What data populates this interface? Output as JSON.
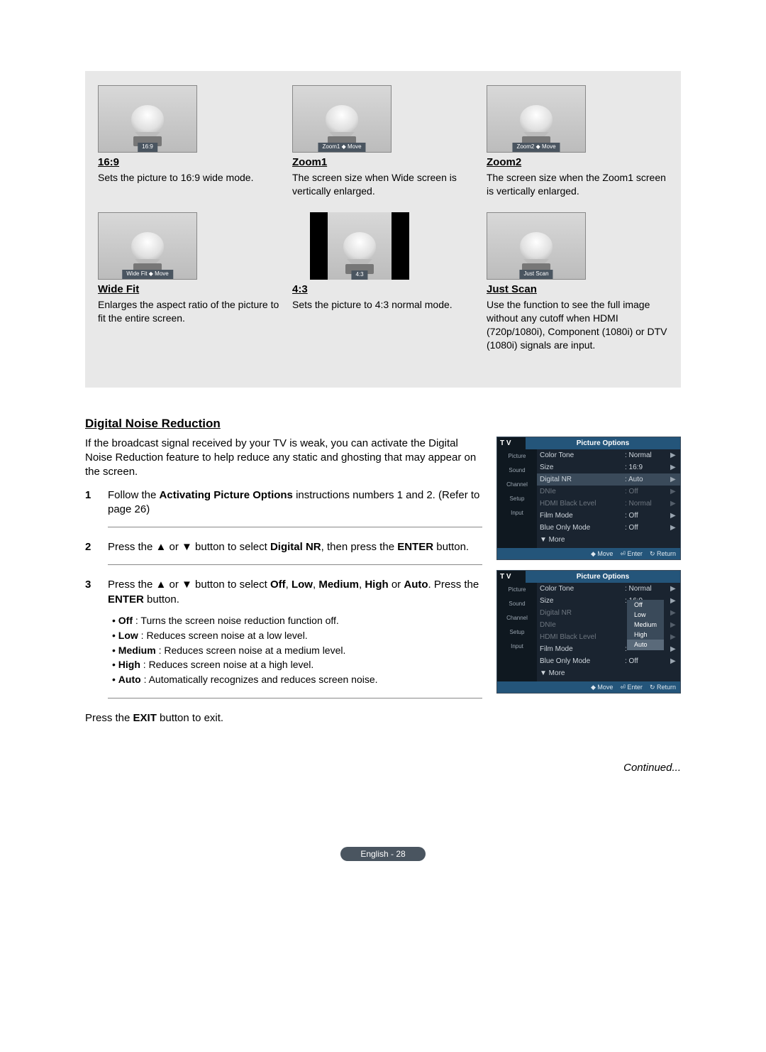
{
  "gridTop": [
    {
      "caption": "16:9",
      "captionBarPrefix": "",
      "title": "16:9",
      "desc": "Sets the picture to 16:9 wide mode.",
      "narrow": false
    },
    {
      "caption": "Zoom1 ◆ Move",
      "captionBarPrefix": "",
      "title": "Zoom1",
      "desc": "The screen size when Wide screen is vertically enlarged.",
      "narrow": false
    },
    {
      "caption": "Zoom2 ◆ Move",
      "captionBarPrefix": "",
      "title": "Zoom2",
      "desc": "The screen size when the Zoom1 screen is vertically enlarged.",
      "narrow": false
    }
  ],
  "gridBottom": [
    {
      "caption": "Wide Fit ◆ Move",
      "title": "Wide Fit",
      "desc": "Enlarges the aspect ratio of the picture to fit the entire screen.",
      "narrow": false
    },
    {
      "caption": "4:3",
      "title": "4:3",
      "desc": "Sets the picture to 4:3 normal mode.",
      "narrow": true
    },
    {
      "caption": "Just Scan",
      "title": "Just Scan",
      "desc": "Use the function to see the full image without any cutoff when HDMI (720p/1080i), Component (1080i) or DTV (1080i) signals are input.",
      "narrow": false
    }
  ],
  "section": {
    "title": "Digital Noise Reduction",
    "intro": "If the broadcast signal received by your TV is weak, you can activate the Digital Noise Reduction feature to help reduce any static and ghosting that may appear on the screen."
  },
  "steps": [
    {
      "num": "1",
      "html": "Follow the <b>Activating Picture Options</b> instructions numbers 1 and 2. (Refer to page 26)"
    },
    {
      "num": "2",
      "html": "Press the ▲ or ▼ button to select <b>Digital NR</b>, then press the <b>ENTER</b> button."
    },
    {
      "num": "3",
      "html": "Press the ▲ or ▼ button to select <b>Off</b>, <b>Low</b>, <b>Medium</b>, <b>High</b> or <b>Auto</b>. Press the <b>ENTER</b> button."
    }
  ],
  "bullets": [
    {
      "label": "Off",
      "text": "Turns the screen noise reduction function off."
    },
    {
      "label": "Low",
      "text": "Reduces screen noise at a low level."
    },
    {
      "label": "Medium",
      "text": "Reduces screen noise at a medium level."
    },
    {
      "label": "High",
      "text": "Reduces screen noise at a high level."
    },
    {
      "label": "Auto",
      "text": "Automatically recognizes and reduces screen noise."
    }
  ],
  "exit": "Press the EXIT button to exit.",
  "continued": "Continued...",
  "pageBadge": "English - 28",
  "osd": {
    "tv": "T V",
    "title": "Picture Options",
    "leftNav": [
      "Picture",
      "Sound",
      "Channel",
      "Setup",
      "Input"
    ],
    "foot": {
      "move": "Move",
      "enter": "Enter",
      "return": "Return"
    },
    "menu1": [
      {
        "label": "Color Tone",
        "val": ": Normal",
        "sel": false,
        "dim": false
      },
      {
        "label": "Size",
        "val": ": 16:9",
        "sel": false,
        "dim": false
      },
      {
        "label": "Digital NR",
        "val": ": Auto",
        "sel": true,
        "dim": false
      },
      {
        "label": "DNIe",
        "val": ": Off",
        "sel": false,
        "dim": true
      },
      {
        "label": "HDMI Black Level",
        "val": ": Normal",
        "sel": false,
        "dim": true
      },
      {
        "label": "Film Mode",
        "val": ": Off",
        "sel": false,
        "dim": false
      },
      {
        "label": "Blue Only Mode",
        "val": ": Off",
        "sel": false,
        "dim": false
      }
    ],
    "more": "▼ More",
    "menu2": [
      {
        "label": "Color Tone",
        "val": ": Normal",
        "sel": false,
        "dim": false
      },
      {
        "label": "Size",
        "val": ": 16:9",
        "sel": false,
        "dim": false
      },
      {
        "label": "Digital NR",
        "val": "",
        "sel": false,
        "dim": true
      },
      {
        "label": "DNIe",
        "val": "",
        "sel": false,
        "dim": true
      },
      {
        "label": "HDMI Black Level",
        "val": "",
        "sel": false,
        "dim": true
      },
      {
        "label": "Film Mode",
        "val": ":",
        "sel": false,
        "dim": false
      },
      {
        "label": "Blue Only Mode",
        "val": ": Off",
        "sel": false,
        "dim": false
      }
    ],
    "dropdown": [
      "Off",
      "Low",
      "Medium",
      "High",
      "Auto"
    ],
    "dropdownSel": "Auto"
  }
}
